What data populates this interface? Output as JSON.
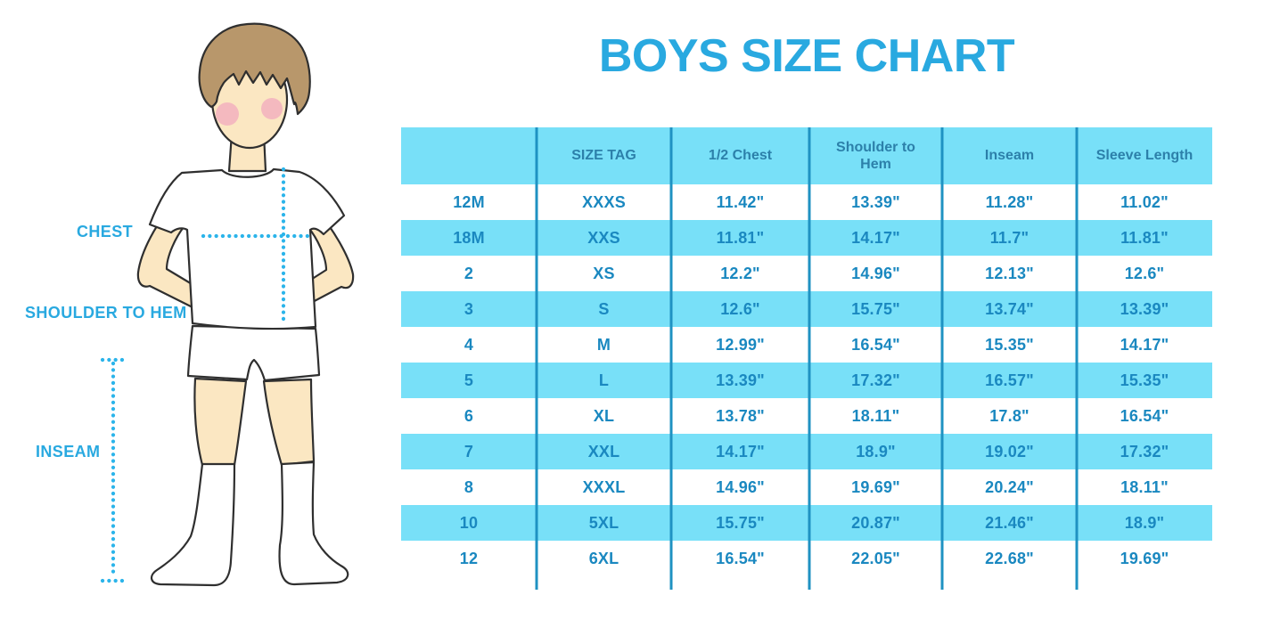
{
  "figure": {
    "labels": {
      "chest": "CHEST",
      "shoulder_to_hem": "SHOULDER TO HEM",
      "inseam": "INSEAM"
    }
  },
  "colors": {
    "accent": "#29A9E0",
    "dotted_line": "#2BB4EA",
    "table_stripe": "#78E0F8",
    "table_header_text": "#2C80AA",
    "table_cell_text": "#1A88C0",
    "table_divider": "#1F92C2",
    "skin": "#FBE7C2",
    "hair": "#B8976B",
    "cheek": "#F3AEBE",
    "outline": "#2F2F2F"
  },
  "chart_data": {
    "type": "table",
    "title": "BOYS SIZE CHART",
    "columns": [
      "",
      "SIZE TAG",
      "1/2 Chest",
      "Shoulder to Hem",
      "Inseam",
      "Sleeve Length"
    ],
    "rows": [
      [
        "12M",
        "XXXS",
        "11.42\"",
        "13.39\"",
        "11.28\"",
        "11.02\""
      ],
      [
        "18M",
        "XXS",
        "11.81\"",
        "14.17\"",
        "11.7\"",
        "11.81\""
      ],
      [
        "2",
        "XS",
        "12.2\"",
        "14.96\"",
        "12.13\"",
        "12.6\""
      ],
      [
        "3",
        "S",
        "12.6\"",
        "15.75\"",
        "13.74\"",
        "13.39\""
      ],
      [
        "4",
        "M",
        "12.99\"",
        "16.54\"",
        "15.35\"",
        "14.17\""
      ],
      [
        "5",
        "L",
        "13.39\"",
        "17.32\"",
        "16.57\"",
        "15.35\""
      ],
      [
        "6",
        "XL",
        "13.78\"",
        "18.11\"",
        "17.8\"",
        "16.54\""
      ],
      [
        "7",
        "XXL",
        "14.17\"",
        "18.9\"",
        "19.02\"",
        "17.32\""
      ],
      [
        "8",
        "XXXL",
        "14.96\"",
        "19.69\"",
        "20.24\"",
        "18.11\""
      ],
      [
        "10",
        "5XL",
        "15.75\"",
        "20.87\"",
        "21.46\"",
        "18.9\""
      ],
      [
        "12",
        "6XL",
        "16.54\"",
        "22.05\"",
        "22.68\"",
        "19.69\""
      ]
    ],
    "stripe_pattern": "header and every second data row filled light blue",
    "legend_position": "none",
    "grid": "vertical column dividers only"
  }
}
